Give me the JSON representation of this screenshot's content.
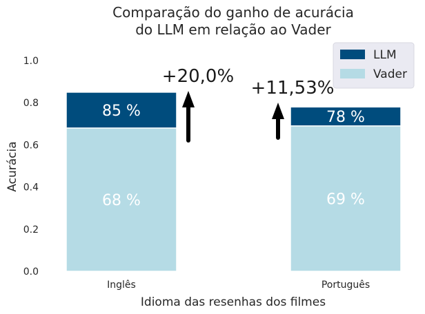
{
  "chart_data": {
    "type": "bar",
    "stacked": "overlay",
    "title": "Comparação do ganho de acurácia\ndo LLM em relação ao Vader",
    "title_lines": [
      "Comparação do ganho de acurácia",
      "do LLM em relação ao Vader"
    ],
    "xlabel": "Idioma das resenhas dos filmes",
    "ylabel": "Acurácia",
    "categories": [
      "Inglês",
      "Português"
    ],
    "ylim": [
      0,
      1.05
    ],
    "yticks": [
      0.0,
      0.2,
      0.4,
      0.6,
      0.8,
      1.0
    ],
    "ytick_labels": [
      "0.0",
      "0.2",
      "0.4",
      "0.6",
      "0.8",
      "1.0"
    ],
    "grid": false,
    "legend_position": "top-right",
    "series": [
      {
        "name": "LLM",
        "color": "#004c7d",
        "values": [
          0.85,
          0.78
        ],
        "labels": [
          "85 %",
          "78 %"
        ]
      },
      {
        "name": "Vader",
        "color": "#b5dbe5",
        "values": [
          0.68,
          0.69
        ],
        "labels": [
          "68 %",
          "69 %"
        ]
      }
    ],
    "annotations": [
      {
        "category": "Inglês",
        "text": "+20,0%",
        "arrow": "up"
      },
      {
        "category": "Português",
        "text": "+11,53%",
        "arrow": "up"
      }
    ]
  }
}
